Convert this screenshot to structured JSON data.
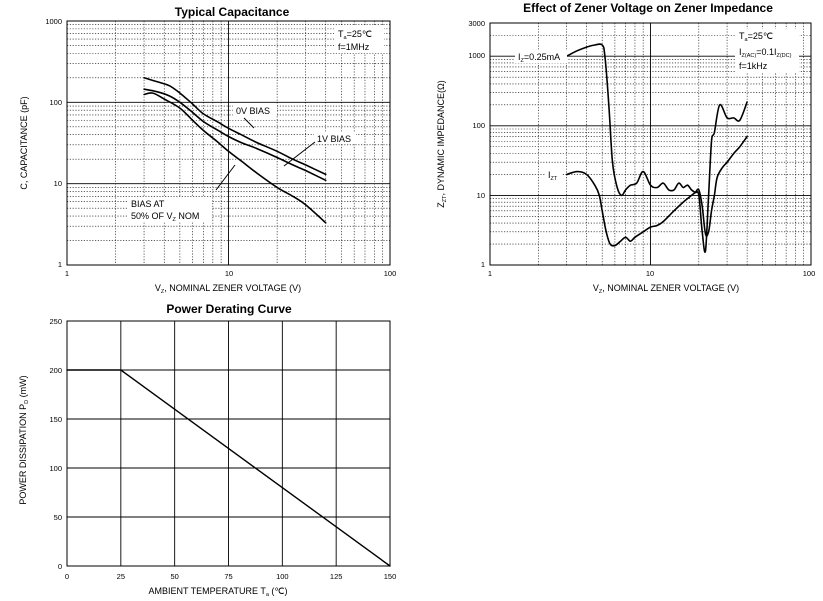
{
  "chart_data": [
    {
      "id": "capacitance",
      "type": "line",
      "title": "Typical Capacitance",
      "xlabel_prefix": "V",
      "xlabel_sub": "Z",
      "xlabel_rest": ", NOMINAL ZENER VOLTAGE (V)",
      "ylabel": "C, CAPACITANCE (pF)",
      "xscale": "log",
      "yscale": "log",
      "xlim": [
        1,
        100
      ],
      "ylim": [
        1,
        1000
      ],
      "x_ticks": [
        "1",
        "10",
        "100"
      ],
      "y_ticks": [
        "1",
        "10",
        "100",
        "1000"
      ],
      "conditions": {
        "ta_prefix": "T",
        "ta_sub": "a",
        "ta_rest": "=25℃",
        "f": "f=1MHz"
      },
      "series": [
        {
          "name": "0V BIAS",
          "x": [
            3,
            3.6,
            4.3,
            5,
            6,
            7,
            8.5,
            10,
            12,
            15,
            20,
            25,
            30,
            40
          ],
          "y": [
            200,
            180,
            160,
            130,
            95,
            72,
            58,
            48,
            40,
            32,
            25,
            20,
            17,
            13
          ]
        },
        {
          "name": "1V BIAS",
          "x": [
            3,
            3.6,
            4.3,
            5,
            6,
            7,
            8.5,
            10,
            12,
            15,
            20,
            25,
            30,
            40
          ],
          "y": [
            145,
            135,
            120,
            100,
            75,
            58,
            46,
            38,
            32,
            27,
            21,
            17,
            14.5,
            11
          ]
        },
        {
          "name": "BIAS AT 50% OF VZ NOM",
          "x": [
            3,
            3.4,
            4,
            5,
            6,
            7,
            8.5,
            10,
            12,
            15,
            20,
            25,
            30,
            40
          ],
          "y": [
            125,
            130,
            110,
            85,
            60,
            45,
            33,
            25,
            19,
            13.5,
            9,
            7,
            5.5,
            3.3
          ]
        }
      ],
      "labels": {
        "bias0": "0V BIAS",
        "bias1": "1V BIAS",
        "bias50_line1": "BIAS AT",
        "bias50_line2_prefix": "50% OF V",
        "bias50_line2_sub": "Z",
        "bias50_line2_rest": " NOM"
      }
    },
    {
      "id": "impedance",
      "type": "line",
      "title": "Effect of Zener Voltage on Zener Impedance",
      "xlabel_prefix": "V",
      "xlabel_sub": "Z",
      "xlabel_rest": ", NOMINAL ZENER VOLTAGE (V)",
      "ylabel_prefix": "Z",
      "ylabel_sub": "ZT",
      "ylabel_rest": ", DYNAMIC IMPEDANCE(Ω)",
      "xscale": "log",
      "yscale": "log",
      "xlim": [
        1,
        100
      ],
      "ylim": [
        1,
        3000
      ],
      "x_ticks": [
        "1",
        "10",
        "100"
      ],
      "y_ticks": [
        "1",
        "10",
        "100",
        "1000",
        "3000"
      ],
      "conditions": {
        "ta_prefix": "T",
        "ta_sub": "a",
        "ta_rest": "=25℃",
        "iz_prefix": "I",
        "iz_sub": "Z(AC)",
        "iz_mid": "=0.1I",
        "iz_sub2": "Z(DC)",
        "f": "f=1kHz"
      },
      "series": [
        {
          "name": "IZ=0.25mA",
          "x": [
            3,
            3.5,
            4,
            4.5,
            5,
            5.2,
            5.5,
            5.8,
            6.2,
            6.6,
            7,
            7.5,
            8.2,
            9,
            10,
            11,
            12,
            13,
            14,
            15,
            16,
            17,
            18,
            19,
            20,
            21,
            22,
            23,
            24,
            25,
            27,
            30,
            33,
            36,
            40
          ],
          "y": [
            1000,
            1200,
            1350,
            1450,
            1450,
            1000,
            200,
            30,
            13,
            10,
            12,
            14,
            15,
            22,
            14,
            13,
            15,
            12,
            12,
            15,
            13,
            14,
            12,
            11,
            10,
            3,
            1.6,
            10,
            60,
            80,
            200,
            130,
            130,
            120,
            220
          ]
        },
        {
          "name": "IZT",
          "x": [
            3,
            3.5,
            4,
            4.5,
            4.8,
            5,
            5.3,
            5.6,
            6,
            6.5,
            7,
            7.5,
            8,
            9,
            10,
            11,
            12,
            14,
            16,
            18,
            19,
            20,
            21,
            22,
            23,
            24,
            25,
            26,
            28,
            30,
            33,
            36,
            40
          ],
          "y": [
            20,
            22,
            20,
            14,
            10,
            6,
            3,
            2,
            1.9,
            2.2,
            2.5,
            2.2,
            2.5,
            3,
            3.5,
            3.7,
            4.2,
            6,
            8,
            10,
            11,
            12,
            7,
            2.8,
            3,
            6,
            10,
            18,
            25,
            30,
            40,
            50,
            70
          ]
        }
      ],
      "labels": {
        "iz_prefix": "I",
        "iz_sub": "Z",
        "iz_rest": "=0.25mA",
        "izt_prefix": "I",
        "izt_sub": "ZT"
      }
    },
    {
      "id": "derating",
      "type": "line",
      "title": "Power Derating Curve",
      "xlabel_prefix": "AMBIENT TEMPERATURE   T",
      "xlabel_sub": "a",
      "xlabel_rest": "   (℃)",
      "ylabel_prefix": "POWER DISSIPATION   P",
      "ylabel_sub": "D",
      "ylabel_rest": "   (mW)",
      "xlim": [
        0,
        150
      ],
      "ylim": [
        0,
        250
      ],
      "x_ticks": [
        "0",
        "25",
        "50",
        "75",
        "100",
        "125",
        "150"
      ],
      "y_ticks": [
        "0",
        "50",
        "100",
        "150",
        "200",
        "250"
      ],
      "series": [
        {
          "name": "Power derating",
          "x": [
            0,
            25,
            150
          ],
          "y": [
            200,
            200,
            0
          ]
        }
      ]
    }
  ]
}
